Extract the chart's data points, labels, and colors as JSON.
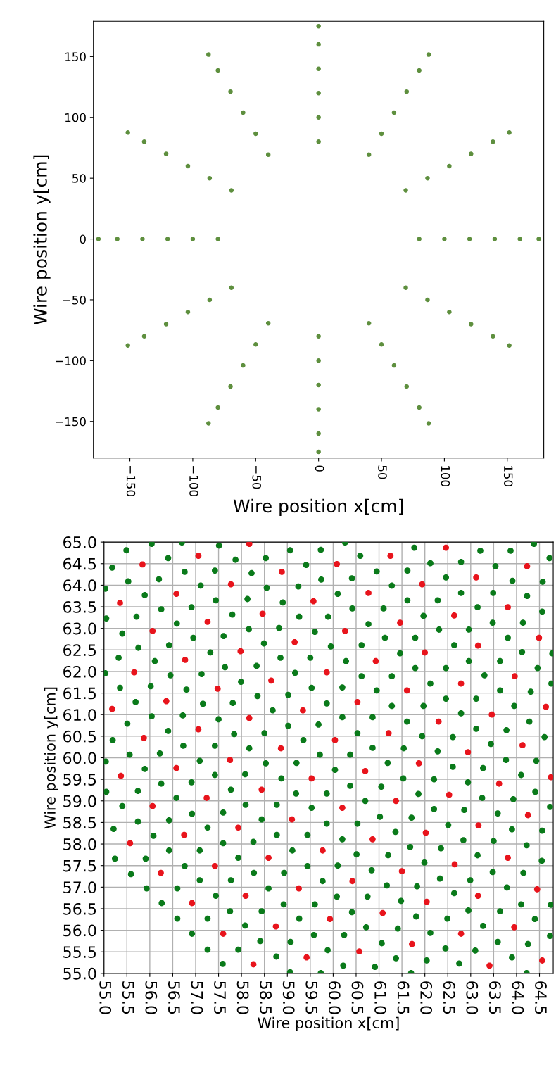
{
  "chart_data": [
    {
      "type": "scatter",
      "xlabel": "Wire position x[cm]",
      "ylabel": "Wire position y[cm]",
      "xlim": [
        -179,
        179
      ],
      "ylim": [
        -180,
        179
      ],
      "xticks": [
        {
          "value": -150,
          "label": "−150"
        },
        {
          "value": -100,
          "label": "−100"
        },
        {
          "value": -50,
          "label": "−50"
        },
        0,
        50,
        100,
        150
      ],
      "yticks": [
        {
          "value": -150,
          "label": "−150"
        },
        {
          "value": -100,
          "label": "−100"
        },
        {
          "value": -50,
          "label": "−50"
        },
        0,
        50,
        100,
        150
      ],
      "grid": false,
      "marker": "circle",
      "series": [
        {
          "color": "#5e8f3e",
          "x": [
            80,
            69.3,
            40,
            0,
            -40,
            -69.3,
            -80,
            -69.3,
            -40,
            0,
            40,
            69.3,
            100,
            86.6,
            50,
            0,
            -50,
            -86.6,
            -100,
            -86.6,
            -50,
            0,
            50,
            86.6,
            120,
            103.9,
            60,
            0,
            -60,
            -103.9,
            -120,
            -103.9,
            -60,
            0,
            60,
            103.9,
            140,
            121.2,
            70,
            0,
            -70,
            -121.2,
            -140,
            -121.2,
            -70,
            0,
            70,
            121.2,
            160,
            138.6,
            80,
            0,
            -80,
            -138.6,
            -160,
            -138.6,
            -80,
            0,
            80,
            138.6,
            175,
            151.6,
            87.5,
            0,
            -87.5,
            -151.6,
            -175,
            -151.6,
            -87.5,
            0,
            87.5,
            151.6
          ],
          "values": [
            0,
            40,
            69.3,
            80,
            69.3,
            40,
            0,
            -40,
            -69.3,
            -80,
            -69.3,
            -40,
            0,
            50,
            86.6,
            100,
            86.6,
            50,
            0,
            -50,
            -86.6,
            -100,
            -86.6,
            -50,
            0,
            60,
            103.9,
            120,
            103.9,
            60,
            0,
            -60,
            -103.9,
            -120,
            -103.9,
            -60,
            0,
            70,
            121.2,
            140,
            121.2,
            70,
            0,
            -70,
            -121.2,
            -140,
            -121.2,
            -70,
            0,
            80,
            138.6,
            160,
            138.6,
            80,
            0,
            -80,
            -138.6,
            -160,
            -138.6,
            -80,
            0,
            87.5,
            151.6,
            175,
            151.6,
            87.5,
            0,
            -87.5,
            -151.6,
            -175,
            -151.6,
            -87.5
          ]
        }
      ]
    },
    {
      "type": "scatter",
      "xlabel": "Wire position x[cm]",
      "ylabel": "Wire position y[cm]",
      "xlim": [
        55,
        64.8
      ],
      "ylim": [
        55,
        65
      ],
      "xticks": [
        {
          "value": 55,
          "label": "55.0"
        },
        55.5,
        {
          "value": 56,
          "label": "56.0"
        },
        56.5,
        {
          "value": 57,
          "label": "57.0"
        },
        57.5,
        {
          "value": 58,
          "label": "58.0"
        },
        58.5,
        {
          "value": 59,
          "label": "59.0"
        },
        59.5,
        {
          "value": 60,
          "label": "60.0"
        },
        60.5,
        {
          "value": 61,
          "label": "61.0"
        },
        61.5,
        {
          "value": 62,
          "label": "62.0"
        },
        62.5,
        {
          "value": 63,
          "label": "63.0"
        },
        63.5,
        {
          "value": 64,
          "label": "64.0"
        },
        64.5
      ],
      "yticks": [
        {
          "value": 55,
          "label": "55.0"
        },
        55.5,
        {
          "value": 56,
          "label": "56.0"
        },
        56.5,
        {
          "value": 57,
          "label": "57.0"
        },
        57.5,
        {
          "value": 58,
          "label": "58.0"
        },
        58.5,
        {
          "value": 59,
          "label": "59.0"
        },
        59.5,
        {
          "value": 60,
          "label": "60.0"
        },
        60.5,
        {
          "value": 61,
          "label": "61.0"
        },
        61.5,
        {
          "value": 62,
          "label": "62.0"
        },
        62.5,
        {
          "value": 63,
          "label": "63.0"
        },
        63.5,
        {
          "value": 64,
          "label": "64.0"
        },
        64.5,
        {
          "value": 65,
          "label": "65.0"
        }
      ],
      "grid": true,
      "marker": "circle",
      "series": [
        {
          "color": "#0a7a1a",
          "x": [
            55.49,
            56.04,
            56.7,
            57.51,
            56.4,
            57.87,
            58.53,
            59.06,
            59.73,
            55.18,
            55.53,
            56.2,
            56.76,
            57.42,
            58.22,
            59.41,
            59.74,
            55.89,
            57.11,
            57.44,
            58.13,
            58.55,
            58.9,
            59.24,
            55.05,
            55.71,
            56.25,
            56.91,
            57.8,
            56.59,
            58.16,
            58.82,
            59.26,
            59.89,
            55.4,
            55.75,
            56.42,
            56.95,
            57.61,
            58.49,
            59.6,
            57.32,
            55.32,
            56.11,
            57.64,
            58.33,
            58.85,
            59.5,
            56.45,
            57.13,
            59.17,
            55.35,
            56.02,
            56.8,
            57.99,
            58.35,
            59.02,
            59.53,
            55.69,
            57.16,
            57.81,
            58.68,
            59.86,
            56.04,
            56.72,
            57.5,
            55.51,
            56.4,
            57.84,
            58.5,
            59.02,
            59.68,
            55.19,
            56.73,
            57.42,
            58.17,
            59.35,
            55.56,
            56.22,
            59.71,
            55.03,
            55.03,
            60.26,
            60.59,
            61.77,
            63.21,
            63.87,
            64.38,
            64.72,
            62.12,
            62.79,
            63.54,
            60.95,
            61.62,
            60.41,
            62.46,
            61.28,
            63.91,
            64.57,
            60.1,
            61.62,
            62.28,
            62.79,
            63.49,
            64.23,
            60.42,
            61.1,
            63.15,
            64.56,
            61.97,
            60.77,
            63.48,
            64.14,
            62.31,
            62.96,
            61.13,
            61.79,
            63.81,
            59.95,
            60.62,
            62.64,
            61.46,
            64.12,
            64.78,
            60.28,
            61.79,
            62.46,
            62.96,
            63.64,
            64.46,
            60.62,
            61.28,
            63.3,
            60.2,
            62.12,
            60.95,
            63.64,
            64.31,
            64.76,
            62.46,
            63.12,
            61.28,
            61.97,
            63.95,
            60.2,
            60.86,
            62.79,
            61.61,
            64.28,
            60.53,
            63.12,
            63.78,
            61.94,
            62.61,
            64.61,
            60.86,
            61.54,
            62.28,
            63.44,
            60.37,
            55.04,
            57.09,
            58.53,
            59.2,
            55.89,
            57.42,
            58.08,
            58.87,
            56.25,
            56.91,
            55.05,
            55.74,
            57.77,
            56.58,
            59.19,
            59.86,
            55.4,
            58.09,
            58.77,
            59.53,
            56.92,
            57.6,
            55.74,
            56.42,
            58.44,
            59.86,
            55.21,
            57.26,
            56.08,
            58.77,
            59.44,
            57.6,
            58.26,
            56.42,
            57.09,
            59.11,
            55.24,
            55.91,
            57.93,
            56.76,
            59.44,
            55.59,
            58.27,
            58.93,
            57.09,
            57.77,
            59.77,
            55.93,
            56.6,
            58.59,
            57.44,
            56.26,
            58.92,
            59.6,
            57.75,
            58.44,
            56.6,
            57.26,
            59.26,
            58.08,
            56.92,
            58.41,
            59.07,
            59.58,
            57.26,
            57.93,
            58.76,
            59.88,
            57.59,
            59.06,
            59.73,
            61.19,
            62.61,
            63.27,
            63.77,
            64.43,
            60.04,
            61.53,
            62.2,
            64.1,
            60.37,
            61.05,
            62.94,
            64.41,
            61.86,
            60.7,
            63.25,
            63.93,
            64.73,
            62.2,
            62.86,
            61.02,
            61.71,
            63.59,
            60.53,
            62.51,
            61.36,
            63.9,
            64.56,
            60.2,
            62.84,
            63.5,
            61.68,
            62.35,
            64.22,
            60.51,
            61.2,
            63.15,
            61.99,
            64.55,
            60.1,
            60.84,
            63.48,
            64.15,
            62.33,
            62.99,
            61.17,
            61.83,
            63.79,
            62.64,
            60.08,
            60.75,
            61.48,
            64.1,
            64.75,
            60.41,
            62.95,
            63.64,
            61.81,
            62.49,
            64.4,
            60.72,
            61.41,
            63.27,
            60.24,
            62.12,
            64.73,
            61.06,
            62.45,
            63.59,
            64.25,
            63.1,
            61.37,
            62.04,
            62.75,
            63.9,
            60.22,
            60.91,
            61.7,
            64.22
          ],
          "values": [
            64.81,
            64.96,
            64.99,
            64.92,
            64.63,
            64.59,
            64.63,
            64.81,
            64.82,
            64.41,
            64.09,
            64.14,
            64.31,
            64.34,
            64.28,
            64.47,
            64.13,
            63.77,
            63.99,
            63.65,
            63.68,
            63.94,
            63.6,
            63.97,
            63.23,
            63.27,
            63.44,
            63.49,
            63.32,
            63.11,
            62.98,
            63.01,
            63.27,
            63.27,
            62.88,
            62.55,
            62.61,
            62.78,
            62.82,
            62.65,
            62.92,
            62.44,
            62.32,
            62.24,
            62.1,
            62.13,
            62.32,
            62.32,
            61.91,
            61.94,
            61.97,
            61.62,
            61.66,
            61.58,
            61.76,
            61.43,
            61.46,
            61.62,
            61.29,
            61.25,
            61.27,
            61.1,
            61.26,
            60.96,
            60.98,
            60.89,
            60.79,
            60.62,
            60.55,
            60.57,
            60.74,
            60.77,
            60.41,
            60.28,
            60.28,
            60.22,
            60.41,
            60.07,
            60.1,
            60.07,
            63.92,
            61.96,
            64.99,
            64.68,
            64.87,
            64.8,
            64.8,
            64.96,
            64.63,
            64.51,
            64.54,
            64.44,
            64.32,
            64.34,
            64.16,
            64.18,
            63.99,
            64.1,
            64.08,
            63.8,
            63.65,
            63.65,
            63.82,
            63.82,
            63.75,
            63.46,
            63.46,
            63.49,
            63.39,
            63.29,
            63.1,
            63.13,
            63.13,
            62.97,
            62.97,
            62.78,
            62.78,
            62.78,
            62.58,
            62.61,
            62.61,
            62.42,
            62.45,
            62.42,
            62.24,
            62.08,
            62.08,
            62.24,
            62.24,
            62.08,
            61.89,
            61.89,
            61.91,
            61.63,
            61.72,
            61.56,
            61.56,
            61.53,
            61.72,
            61.37,
            61.37,
            61.2,
            61.2,
            61.2,
            60.94,
            60.94,
            61.03,
            60.84,
            60.84,
            60.57,
            60.67,
            60.64,
            60.5,
            60.48,
            60.48,
            60.23,
            60.22,
            60.15,
            60.32,
            60.07,
            59.91,
            59.93,
            59.87,
            59.88,
            59.74,
            59.6,
            59.62,
            59.52,
            59.4,
            59.43,
            59.21,
            59.23,
            59.26,
            59.07,
            59.17,
            59.17,
            58.88,
            58.91,
            58.91,
            58.84,
            58.7,
            58.73,
            58.52,
            58.55,
            58.57,
            58.47,
            58.35,
            58.38,
            58.19,
            58.21,
            58.21,
            58.02,
            58.05,
            57.85,
            57.85,
            57.85,
            57.66,
            57.66,
            57.68,
            57.49,
            57.49,
            57.3,
            57.33,
            57.33,
            57.16,
            57.16,
            57.14,
            56.97,
            56.97,
            56.97,
            56.8,
            56.63,
            56.6,
            56.6,
            56.44,
            56.44,
            56.27,
            56.27,
            56.27,
            56.11,
            55.92,
            55.75,
            55.73,
            55.89,
            55.55,
            55.55,
            55.39,
            55.54,
            55.22,
            55.03,
            55.01,
            59.88,
            59.79,
            59.76,
            59.95,
            59.93,
            59.72,
            59.52,
            59.5,
            59.6,
            59.35,
            59.33,
            59.43,
            59.21,
            59.16,
            59.0,
            59.07,
            59.04,
            58.86,
            58.81,
            58.79,
            58.63,
            58.61,
            58.71,
            58.47,
            58.44,
            58.28,
            58.34,
            58.31,
            58.11,
            58.09,
            58.07,
            57.93,
            57.9,
            57.97,
            57.76,
            57.74,
            57.74,
            57.57,
            57.61,
            57.5,
            57.39,
            57.35,
            57.33,
            57.2,
            57.16,
            57.04,
            57.02,
            56.99,
            56.86,
            56.78,
            56.78,
            56.68,
            56.6,
            56.59,
            56.42,
            56.46,
            56.44,
            56.32,
            56.27,
            56.26,
            56.07,
            56.04,
            56.1,
            55.89,
            55.94,
            55.87,
            55.7,
            55.58,
            55.73,
            55.68,
            55.53,
            55.35,
            55.3,
            55.23,
            55.37,
            55.18,
            55.15,
            55.01,
            55.01
          ]
        },
        {
          "color": "#e8141c",
          "x": [
            58.17,
            57.06,
            55.84,
            58.88,
            57.77,
            56.58,
            55.35,
            59.57,
            58.46,
            57.26,
            56.06,
            59.16,
            57.98,
            56.77,
            55.66,
            59.86,
            58.65,
            57.48,
            56.36,
            55.18,
            59.34,
            58.17,
            57.06,
            55.87,
            58.86,
            62.46,
            61.25,
            60.08,
            64.23,
            63.12,
            61.94,
            60.77,
            63.81,
            62.64,
            61.46,
            60.26,
            64.49,
            63.16,
            62.0,
            60.93,
            63.96,
            62.79,
            61.61,
            60.53,
            64.64,
            63.46,
            62.3,
            61.21,
            60.04,
            64.13,
            62.94,
            57.75,
            56.58,
            55.37,
            59.53,
            58.44,
            57.24,
            56.06,
            59.1,
            57.93,
            56.75,
            55.57,
            59.77,
            58.59,
            57.42,
            56.24,
            59.25,
            58.09,
            56.92,
            58.75,
            57.6,
            59.42,
            58.26,
            61.87,
            60.7,
            64.75,
            63.62,
            62.53,
            61.37,
            60.2,
            64.25,
            63.17,
            62.02,
            60.86,
            63.81,
            62.65,
            61.5,
            60.42,
            64.45,
            63.16,
            62.04,
            61.08,
            59.93,
            63.95,
            62.79,
            61.72,
            60.57,
            64.56,
            63.41
          ],
          "values": [
            64.96,
            64.68,
            64.48,
            64.31,
            64.02,
            63.8,
            63.59,
            63.63,
            63.34,
            63.15,
            62.94,
            62.68,
            62.47,
            62.27,
            61.98,
            61.98,
            61.79,
            61.6,
            61.31,
            61.13,
            61.1,
            60.92,
            60.66,
            60.46,
            60.22,
            64.87,
            64.68,
            64.49,
            64.44,
            64.18,
            64.02,
            63.82,
            63.49,
            63.3,
            63.13,
            62.94,
            62.78,
            62.6,
            62.44,
            62.24,
            61.89,
            61.72,
            61.56,
            61.29,
            61.18,
            61.0,
            60.84,
            60.57,
            60.41,
            60.29,
            60.13,
            59.95,
            59.76,
            59.58,
            59.52,
            59.26,
            59.07,
            58.88,
            58.57,
            58.38,
            58.21,
            58.02,
            57.85,
            57.68,
            57.49,
            57.33,
            56.97,
            56.8,
            56.63,
            56.09,
            55.92,
            55.37,
            55.21,
            59.87,
            59.69,
            59.55,
            59.4,
            59.14,
            59.0,
            58.84,
            58.67,
            58.43,
            58.26,
            58.11,
            57.68,
            57.53,
            57.37,
            57.14,
            56.95,
            56.8,
            56.66,
            56.4,
            56.26,
            56.07,
            55.92,
            55.68,
            55.51,
            55.3,
            55.18
          ]
        }
      ]
    }
  ]
}
